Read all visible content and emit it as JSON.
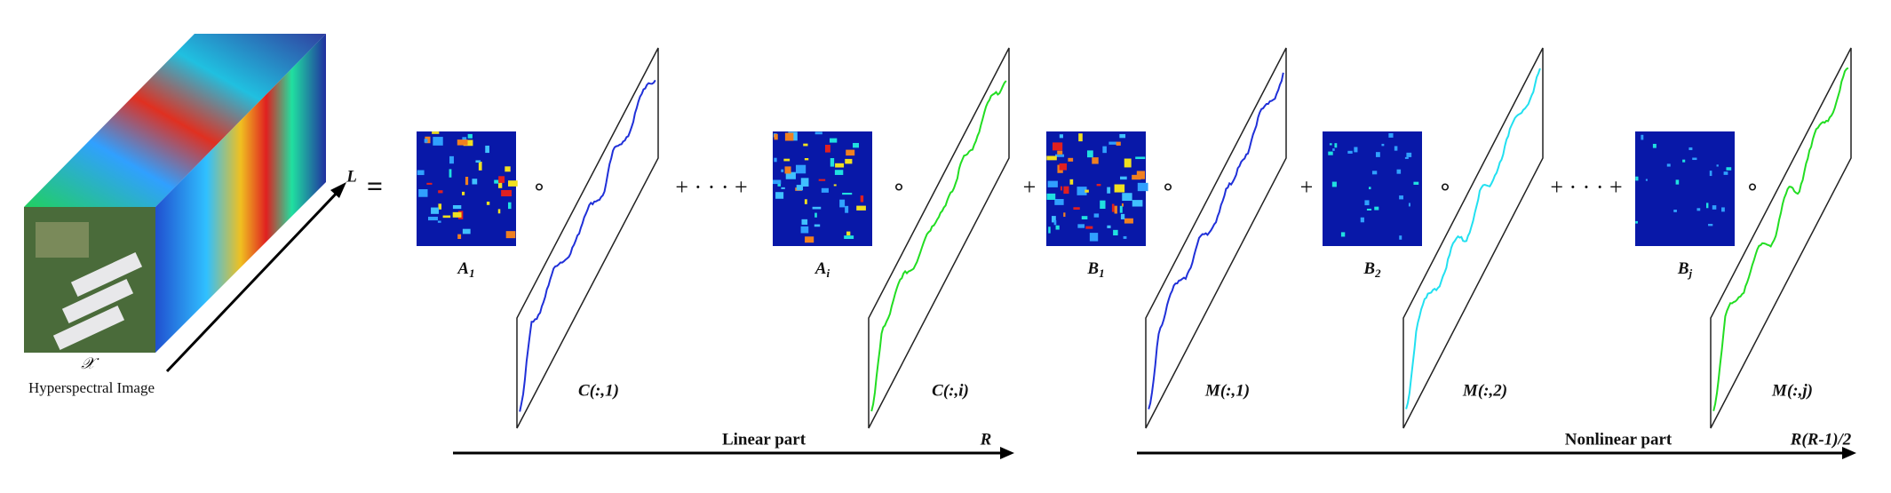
{
  "input": {
    "axis_label": "L",
    "symbol": "𝒳",
    "caption": "Hyperspectral Image"
  },
  "equals": "=",
  "terms": [
    {
      "map": {
        "main": "A",
        "sub": "1"
      },
      "op": "∘",
      "profile": "C(:,1)",
      "color": "#2030d8",
      "follow": "+ · · · +"
    },
    {
      "map": {
        "main": "A",
        "sub": "i"
      },
      "op": "∘",
      "profile": "C(:,i)",
      "color": "#22dd22",
      "follow": "+"
    },
    {
      "map": {
        "main": "B",
        "sub": "1"
      },
      "op": "∘",
      "profile": "M(:,1)",
      "color": "#2030d8",
      "follow": "+"
    },
    {
      "map": {
        "main": "B",
        "sub": "2"
      },
      "op": "∘",
      "profile": "M(:,2)",
      "color": "#22e0f0",
      "follow": "+ · · · +"
    },
    {
      "map": {
        "main": "B",
        "sub": "j"
      },
      "op": "∘",
      "profile": "M(:,j)",
      "color": "#22dd22"
    }
  ],
  "parts": [
    {
      "label": "Linear part",
      "end": "R"
    },
    {
      "label": "Nonlinear part",
      "end": "R(R-1)/2"
    }
  ]
}
